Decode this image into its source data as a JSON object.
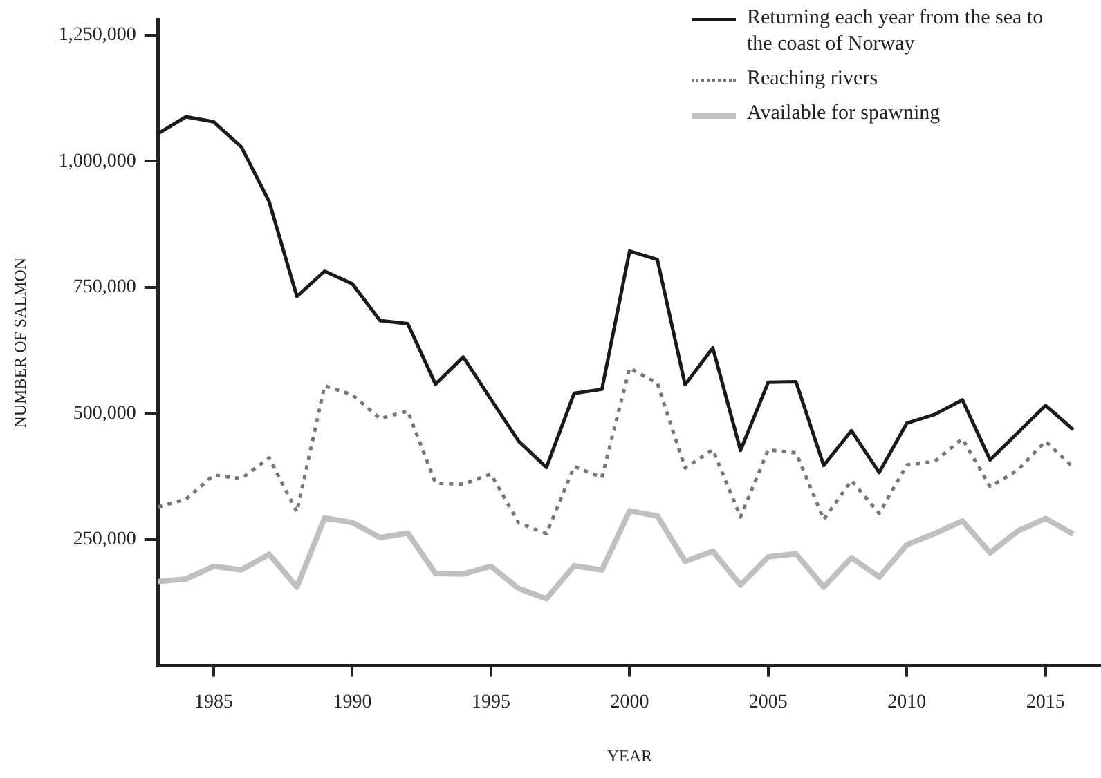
{
  "chart_data": {
    "type": "line",
    "xlabel": "YEAR",
    "ylabel": "NUMBER OF SALMON",
    "x": [
      1983,
      1984,
      1985,
      1986,
      1987,
      1988,
      1989,
      1990,
      1991,
      1992,
      1993,
      1994,
      1995,
      1996,
      1997,
      1998,
      1999,
      2000,
      2001,
      2002,
      2003,
      2004,
      2005,
      2006,
      2007,
      2008,
      2009,
      2010,
      2011,
      2012,
      2013,
      2014,
      2015,
      2016
    ],
    "series": [
      {
        "name": "Returning each year from the sea to the coast of Norway",
        "color": "#1a1a1a",
        "line_style": "solid",
        "values": [
          1055000,
          1088000,
          1078000,
          1028000,
          920000,
          732000,
          782000,
          757000,
          684000,
          678000,
          558000,
          612000,
          528000,
          445000,
          393000,
          540000,
          548000,
          822000,
          805000,
          557000,
          630000,
          427000,
          562000,
          563000,
          397000,
          466000,
          383000,
          481000,
          498000,
          527000,
          408000,
          462000,
          516000,
          468000
        ]
      },
      {
        "name": "Reaching rivers",
        "color": "#77777a",
        "line_style": "dotted",
        "values": [
          315000,
          330000,
          378000,
          371000,
          412000,
          305000,
          555000,
          537000,
          490000,
          505000,
          362000,
          360000,
          380000,
          283000,
          262000,
          395000,
          373000,
          590000,
          560000,
          392000,
          428000,
          295000,
          428000,
          422000,
          290000,
          367000,
          302000,
          398000,
          405000,
          450000,
          355000,
          388000,
          445000,
          393000
        ]
      },
      {
        "name": "Available for spawning",
        "color": "#c0c0c2",
        "line_style": "solid",
        "values": [
          167000,
          172000,
          197000,
          190000,
          221000,
          156000,
          293000,
          284000,
          254000,
          263000,
          183000,
          182000,
          197000,
          153000,
          133000,
          198000,
          190000,
          307000,
          297000,
          207000,
          227000,
          160000,
          216000,
          222000,
          156000,
          214000,
          176000,
          240000,
          262000,
          287000,
          224000,
          267000,
          292000,
          261000
        ]
      }
    ],
    "xlim": [
      1983,
      2017
    ],
    "xticks": [
      1985,
      1990,
      1995,
      2000,
      2005,
      2010,
      2015
    ],
    "ylim": [
      0,
      1280000
    ],
    "yticks": [
      {
        "value": 250000,
        "label": "250,000"
      },
      {
        "value": 500000,
        "label": "500,000"
      },
      {
        "value": 750000,
        "label": "750,000"
      },
      {
        "value": 1000000,
        "label": "1,000,000"
      },
      {
        "value": 1250000,
        "label": "1,250,000"
      }
    ],
    "grid": false,
    "legend": "top right",
    "marker": "none"
  }
}
